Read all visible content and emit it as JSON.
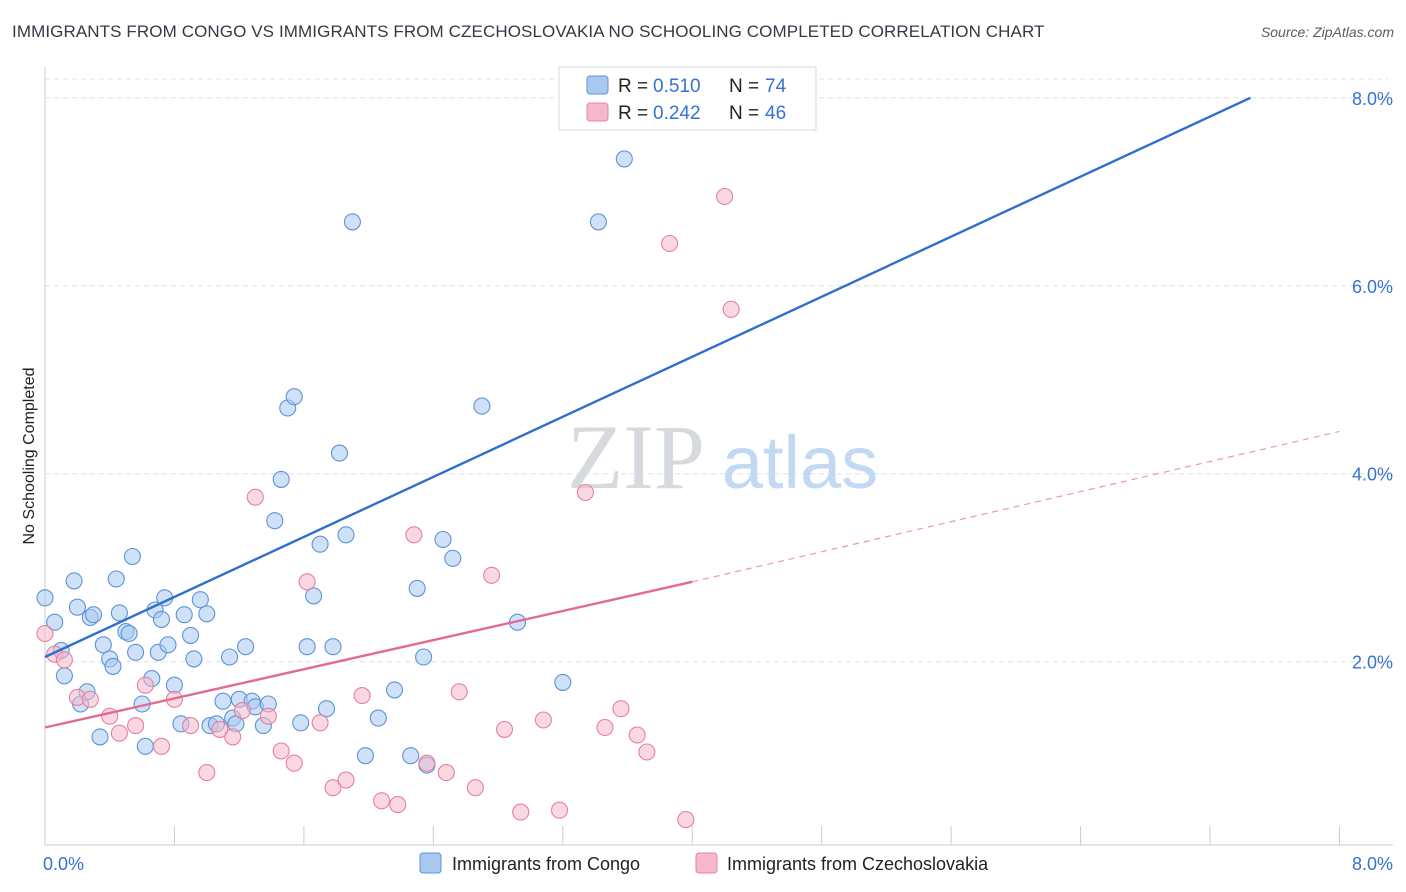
{
  "chart_data": {
    "type": "scatter",
    "title": "IMMIGRANTS FROM CONGO VS IMMIGRANTS FROM CZECHOSLOVAKIA NO SCHOOLING COMPLETED CORRELATION CHART",
    "source": "Source: ZipAtlas.com",
    "watermark": {
      "zip": "ZIP",
      "atlas": "atlas"
    },
    "xlabel": "",
    "ylabel": "No Schooling Completed",
    "xlim": [
      0,
      8.3
    ],
    "ylim": [
      0.05,
      8.2
    ],
    "x_tick_labels": [
      {
        "value": 0.0,
        "label": "0.0%"
      },
      {
        "value": 8.0,
        "label": "8.0%"
      }
    ],
    "x_minor_ticks": [
      0,
      0.8,
      1.6,
      2.4,
      3.2,
      4.0,
      4.8,
      5.6,
      6.4,
      7.2,
      8.0
    ],
    "y_ticks": [
      {
        "value": 2.0,
        "label": "2.0%"
      },
      {
        "value": 4.0,
        "label": "4.0%"
      },
      {
        "value": 6.0,
        "label": "6.0%"
      },
      {
        "value": 8.0,
        "label": "8.0%"
      }
    ],
    "grid": true,
    "legend_position": "top-center",
    "colors": {
      "congo_fill": "#a8c8f0",
      "congo_stroke": "#5d93d6",
      "congo_line": "#2f6fcc",
      "czech_fill": "#f6b8cb",
      "czech_stroke": "#e97fa0",
      "czech_line": "#e36a92",
      "value_text": "#3572d4",
      "grid": "#dde1e6"
    },
    "legend": [
      {
        "series": "congo",
        "r_label": "R =",
        "r_value": "0.510",
        "n_label": "N =",
        "n_value": "74"
      },
      {
        "series": "czech",
        "r_label": "R =",
        "r_value": "0.242",
        "n_label": "N =",
        "n_value": "46"
      }
    ],
    "bottom_legend": [
      {
        "series": "congo",
        "label": "Immigrants from Congo"
      },
      {
        "series": "czech",
        "label": "Immigrants from Czechoslovakia"
      }
    ],
    "series": [
      {
        "key": "congo",
        "name": "Immigrants from Congo",
        "trend": {
          "x1": 0.0,
          "y1": 2.05,
          "x2": 7.45,
          "y2": 8.0
        },
        "points": [
          [
            0.0,
            2.68
          ],
          [
            0.06,
            2.42
          ],
          [
            0.1,
            2.12
          ],
          [
            0.12,
            1.85
          ],
          [
            0.18,
            2.86
          ],
          [
            0.2,
            2.58
          ],
          [
            0.22,
            1.55
          ],
          [
            0.26,
            1.68
          ],
          [
            0.28,
            2.47
          ],
          [
            0.3,
            2.5
          ],
          [
            0.34,
            1.2
          ],
          [
            0.36,
            2.18
          ],
          [
            0.4,
            2.03
          ],
          [
            0.42,
            1.95
          ],
          [
            0.44,
            2.88
          ],
          [
            0.46,
            2.52
          ],
          [
            0.5,
            2.32
          ],
          [
            0.52,
            2.3
          ],
          [
            0.54,
            3.12
          ],
          [
            0.56,
            2.1
          ],
          [
            0.6,
            1.55
          ],
          [
            0.62,
            1.1
          ],
          [
            0.66,
            1.82
          ],
          [
            0.68,
            2.55
          ],
          [
            0.7,
            2.1
          ],
          [
            0.72,
            2.45
          ],
          [
            0.74,
            2.68
          ],
          [
            0.76,
            2.18
          ],
          [
            0.8,
            1.75
          ],
          [
            0.84,
            1.34
          ],
          [
            0.86,
            2.5
          ],
          [
            0.9,
            2.28
          ],
          [
            0.92,
            2.03
          ],
          [
            0.96,
            2.66
          ],
          [
            1.0,
            2.51
          ],
          [
            1.02,
            1.32
          ],
          [
            1.06,
            1.34
          ],
          [
            1.1,
            1.58
          ],
          [
            1.14,
            2.05
          ],
          [
            1.16,
            1.4
          ],
          [
            1.18,
            1.34
          ],
          [
            1.2,
            1.6
          ],
          [
            1.24,
            2.16
          ],
          [
            1.28,
            1.58
          ],
          [
            1.3,
            1.52
          ],
          [
            1.35,
            1.32
          ],
          [
            1.38,
            1.55
          ],
          [
            1.42,
            3.5
          ],
          [
            1.46,
            3.94
          ],
          [
            1.5,
            4.7
          ],
          [
            1.54,
            4.82
          ],
          [
            1.58,
            1.35
          ],
          [
            1.62,
            2.16
          ],
          [
            1.66,
            2.7
          ],
          [
            1.7,
            3.25
          ],
          [
            1.74,
            1.5
          ],
          [
            1.78,
            2.16
          ],
          [
            1.82,
            4.22
          ],
          [
            1.86,
            3.35
          ],
          [
            1.9,
            6.68
          ],
          [
            1.98,
            1.0
          ],
          [
            2.06,
            1.4
          ],
          [
            2.16,
            1.7
          ],
          [
            2.26,
            1.0
          ],
          [
            2.3,
            2.78
          ],
          [
            2.34,
            2.05
          ],
          [
            2.36,
            0.9
          ],
          [
            2.46,
            3.3
          ],
          [
            2.52,
            3.1
          ],
          [
            2.7,
            4.72
          ],
          [
            2.92,
            2.42
          ],
          [
            3.2,
            1.78
          ],
          [
            3.42,
            6.68
          ],
          [
            3.58,
            7.35
          ]
        ]
      },
      {
        "key": "czech",
        "name": "Immigrants from Czechoslovakia",
        "trend": {
          "x1": 0.0,
          "y1": 1.3,
          "x2": 4.0,
          "y2": 2.85
        },
        "trend_ext": {
          "x1": 4.0,
          "y1": 2.85,
          "x2": 8.0,
          "y2": 4.45
        },
        "points": [
          [
            0.0,
            2.3
          ],
          [
            0.06,
            2.08
          ],
          [
            0.12,
            2.02
          ],
          [
            0.2,
            1.62
          ],
          [
            0.28,
            1.6
          ],
          [
            0.4,
            1.42
          ],
          [
            0.46,
            1.24
          ],
          [
            0.56,
            1.32
          ],
          [
            0.62,
            1.75
          ],
          [
            0.72,
            1.1
          ],
          [
            0.8,
            1.6
          ],
          [
            0.9,
            1.32
          ],
          [
            1.0,
            0.82
          ],
          [
            1.08,
            1.28
          ],
          [
            1.16,
            1.2
          ],
          [
            1.22,
            1.48
          ],
          [
            1.3,
            3.75
          ],
          [
            1.38,
            1.42
          ],
          [
            1.46,
            1.05
          ],
          [
            1.54,
            0.92
          ],
          [
            1.62,
            2.85
          ],
          [
            1.7,
            1.35
          ],
          [
            1.78,
            0.66
          ],
          [
            1.86,
            0.74
          ],
          [
            1.96,
            1.64
          ],
          [
            2.08,
            0.52
          ],
          [
            2.18,
            0.48
          ],
          [
            2.28,
            3.35
          ],
          [
            2.36,
            0.92
          ],
          [
            2.48,
            0.82
          ],
          [
            2.56,
            1.68
          ],
          [
            2.66,
            0.66
          ],
          [
            2.76,
            2.92
          ],
          [
            2.84,
            1.28
          ],
          [
            2.94,
            0.4
          ],
          [
            3.08,
            1.38
          ],
          [
            3.18,
            0.42
          ],
          [
            3.34,
            3.8
          ],
          [
            3.46,
            1.3
          ],
          [
            3.56,
            1.5
          ],
          [
            3.66,
            1.22
          ],
          [
            3.72,
            1.04
          ],
          [
            3.86,
            6.45
          ],
          [
            3.96,
            0.32
          ],
          [
            4.24,
            5.75
          ],
          [
            4.2,
            6.95
          ]
        ]
      }
    ]
  }
}
